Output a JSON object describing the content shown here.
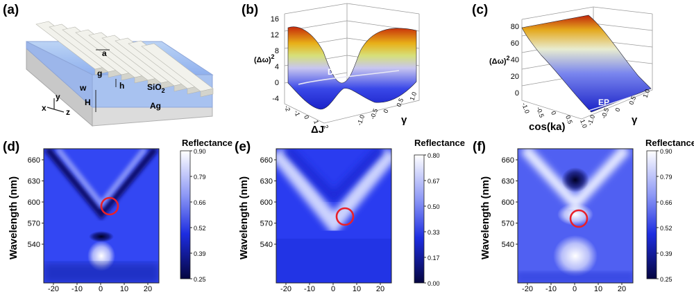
{
  "panels": {
    "a": {
      "label": "(a)",
      "dims": [
        "a",
        "g",
        "w",
        "h",
        "H"
      ],
      "materials": {
        "oxide_base": "SiO",
        "oxide_sub": "2",
        "metal": "Ag"
      },
      "axes": [
        "x",
        "y",
        "z"
      ]
    },
    "b": {
      "label": "(b)",
      "zlabel_base": "(Δω)",
      "zlabel_sup": "2",
      "zticks": [
        "16",
        "12",
        "8",
        "4",
        "0",
        "-4"
      ],
      "xlabel": "ΔJ",
      "ylabel": "γ",
      "xticks": [
        "-2",
        "-1",
        "0",
        "1",
        "2"
      ],
      "yticks": [
        "-1.0",
        "-0.5",
        "0",
        "0.5",
        "1.0"
      ],
      "point": "DP"
    },
    "c": {
      "label": "(c)",
      "zlabel_base": "(Δω)",
      "zlabel_sup": "2",
      "zticks": [
        "80",
        "60",
        "40",
        "20",
        "0"
      ],
      "xlabel": "cos(ka)",
      "ylabel": "γ",
      "xticks": [
        "-1.0",
        "-0.5",
        "0",
        "0.5",
        "1.0"
      ],
      "yticks": [
        "-1.0",
        "-0.5",
        "0",
        "0.5",
        "1.0"
      ],
      "point": "EP"
    },
    "maps": [
      {
        "label": "(d)",
        "ylabel": "Wavelength (nm)",
        "yticks": [
          "660",
          "630",
          "600",
          "570",
          "540"
        ],
        "xticks": [
          "-20",
          "-10",
          "0",
          "10",
          "20"
        ],
        "colorbar_title": "Reflectance",
        "colorbar_ticks": [
          "0.90",
          "0.79",
          "0.66",
          "0.52",
          "0.39",
          "0.25"
        ]
      },
      {
        "label": "(e)",
        "ylabel": "Wavelength (nm)",
        "yticks": [
          "660",
          "630",
          "600",
          "570",
          "540"
        ],
        "xticks": [
          "-20",
          "-10",
          "0",
          "10",
          "20"
        ],
        "colorbar_title": "Reflectance",
        "colorbar_ticks": [
          "0.80",
          "0.67",
          "0.50",
          "0.33",
          "0.17",
          "0.00"
        ]
      },
      {
        "label": "(f)",
        "ylabel": "Wavelength (nm)",
        "yticks": [
          "660",
          "630",
          "600",
          "570",
          "540"
        ],
        "xticks": [
          "-20",
          "-10",
          "0",
          "10",
          "20"
        ],
        "colorbar_title": "Reflectance",
        "colorbar_ticks": [
          "0.90",
          "0.79",
          "0.66",
          "0.52",
          "0.39",
          "0.25"
        ]
      }
    ]
  },
  "colors": {
    "map_dark": "#0a0a6e",
    "map_mid": "#2a3cf0",
    "map_light": "#ffffff",
    "circle": "#e8202a"
  }
}
